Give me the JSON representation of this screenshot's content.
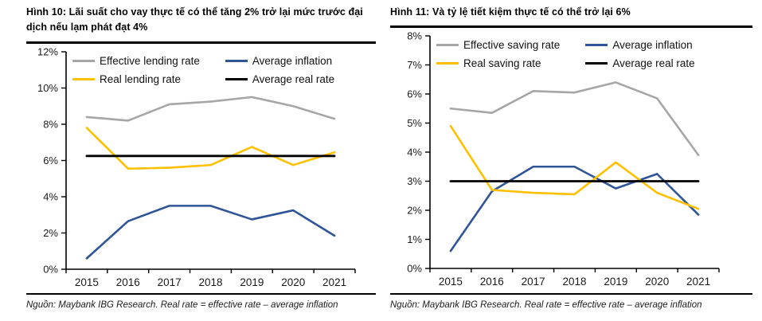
{
  "panels": [
    {
      "title": "Hình 10: Lãi suất cho vay thực tế có thể tăng 2% trở lại mức trước đại dịch nếu lạm phát đạt 4%",
      "source": "Nguồn: Maybank IBG Research. Real rate = effective rate – average inflation",
      "chart_data": {
        "type": "line",
        "categories": [
          "2015",
          "2016",
          "2017",
          "2018",
          "2019",
          "2020",
          "2021"
        ],
        "xlabel": "",
        "ylabel": "",
        "ylim": [
          0,
          12
        ],
        "ytick_step": 2,
        "ytick_suffix": "%",
        "grid": false,
        "legend_position": "top-inside",
        "series": [
          {
            "name": "Effective lending rate",
            "color": "#a6a6a6",
            "values": [
              8.4,
              8.2,
              9.1,
              9.25,
              9.5,
              9.0,
              8.3
            ]
          },
          {
            "name": "Average inflation",
            "color": "#2f5597",
            "values": [
              0.6,
              2.65,
              3.5,
              3.5,
              2.75,
              3.25,
              1.85
            ]
          },
          {
            "name": "Real lending rate",
            "color": "#ffc000",
            "values": [
              7.8,
              5.55,
              5.6,
              5.75,
              6.75,
              5.75,
              6.45
            ]
          },
          {
            "name": "Average real rate",
            "color": "#000000",
            "values": [
              6.25,
              6.25,
              6.25,
              6.25,
              6.25,
              6.25,
              6.25
            ]
          }
        ]
      }
    },
    {
      "title": "Hình 11: Và tỷ lệ tiết kiệm thực tế có thể trở lại 6%",
      "source": "Nguồn: Maybank IBG Research. Real rate = effective rate – average inflation",
      "chart_data": {
        "type": "line",
        "categories": [
          "2015",
          "2016",
          "2017",
          "2018",
          "2019",
          "2020",
          "2021"
        ],
        "xlabel": "",
        "ylabel": "",
        "ylim": [
          0,
          8
        ],
        "ytick_step": 1,
        "ytick_suffix": "%",
        "grid": false,
        "legend_position": "top-inside",
        "series": [
          {
            "name": "Effective saving rate",
            "color": "#a6a6a6",
            "values": [
              5.5,
              5.35,
              6.1,
              6.05,
              6.4,
              5.85,
              3.9
            ]
          },
          {
            "name": "Average inflation",
            "color": "#2f5597",
            "values": [
              0.6,
              2.65,
              3.5,
              3.5,
              2.75,
              3.25,
              1.85
            ]
          },
          {
            "name": "Real saving rate",
            "color": "#ffc000",
            "values": [
              4.9,
              2.7,
              2.6,
              2.55,
              3.65,
              2.6,
              2.05
            ]
          },
          {
            "name": "Average real rate",
            "color": "#000000",
            "values": [
              3.0,
              3.0,
              3.0,
              3.0,
              3.0,
              3.0,
              3.0
            ]
          }
        ]
      }
    }
  ]
}
